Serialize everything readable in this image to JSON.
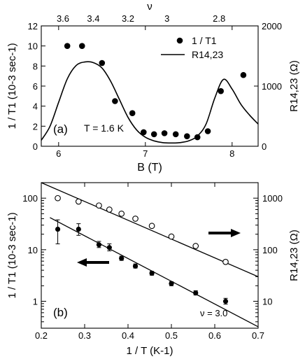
{
  "chart_data": [
    {
      "panel_label": "(a)",
      "type": "scatter",
      "x_axis": {
        "label": "B (T)",
        "range": [
          5.8,
          8.3
        ],
        "ticks": [
          6,
          7,
          8
        ],
        "tick_labels": [
          "6",
          "7",
          "8"
        ]
      },
      "top_axis": {
        "label": "ν",
        "ticks": [
          3.6,
          3.4,
          3.2,
          3,
          2.8
        ],
        "tick_labels": [
          "3.6",
          "3.4",
          "3.2",
          "3",
          "2.8"
        ],
        "tick_positions_B": [
          6.05,
          6.4,
          6.8,
          7.25,
          7.85
        ]
      },
      "y_axis": {
        "label": "1 / T1 (10-3 sec-1)",
        "range": [
          0,
          12
        ],
        "ticks": [
          0,
          2,
          4,
          6,
          8,
          10,
          12
        ],
        "tick_labels": [
          "0",
          "2",
          "4",
          "6",
          "8",
          "10",
          "12"
        ]
      },
      "y2_axis": {
        "label": "R14,23 (Ω)",
        "range": [
          0,
          2000
        ],
        "ticks": [
          0,
          1000,
          2000
        ],
        "tick_labels": [
          "0",
          "1000",
          "2000"
        ]
      },
      "legend": {
        "position": "top-right",
        "entries": [
          {
            "label": "1 / T1",
            "marker": "filled-circle"
          },
          {
            "label": "R14,23",
            "marker": "line"
          }
        ]
      },
      "annotation": "T = 1.6 K",
      "series": [
        {
          "name": "1 / T1",
          "style": "filled-circle",
          "x": [
            6.1,
            6.27,
            6.5,
            6.65,
            6.85,
            6.98,
            7.1,
            7.22,
            7.35,
            7.48,
            7.6,
            7.72,
            7.87,
            8.13
          ],
          "y": [
            10.0,
            10.0,
            8.3,
            4.5,
            3.3,
            1.4,
            1.2,
            1.3,
            1.2,
            1.0,
            0.9,
            1.5,
            5.5,
            7.1
          ]
        },
        {
          "name": "R14,23",
          "style": "line",
          "axis": "y2",
          "x": [
            5.8,
            5.9,
            6.0,
            6.1,
            6.2,
            6.3,
            6.4,
            6.5,
            6.6,
            6.7,
            6.8,
            6.9,
            7.0,
            7.1,
            7.2,
            7.3,
            7.4,
            7.5,
            7.6,
            7.7,
            7.8,
            7.9,
            8.0,
            8.1,
            8.2,
            8.3
          ],
          "y": [
            100,
            330,
            730,
            1120,
            1340,
            1400,
            1390,
            1300,
            1080,
            780,
            480,
            270,
            150,
            90,
            60,
            55,
            60,
            90,
            170,
            370,
            800,
            1110,
            950,
            700,
            520,
            370
          ]
        }
      ]
    },
    {
      "panel_label": "(b)",
      "type": "scatter",
      "x_axis": {
        "label": "1 / T (K-1)",
        "range": [
          0.2,
          0.7
        ],
        "ticks": [
          0.2,
          0.3,
          0.4,
          0.5,
          0.6,
          0.7
        ],
        "tick_labels": [
          "0.2",
          "0.3",
          "0.4",
          "0.5",
          "0.6",
          "0.7"
        ]
      },
      "y_axis": {
        "label": "1 / T1 (10-3 sec-1)",
        "scale": "log",
        "range": [
          0.3,
          200
        ],
        "ticks": [
          1,
          10,
          100
        ],
        "tick_labels": [
          "1",
          "10",
          "100"
        ]
      },
      "y2_axis": {
        "label": "R14,23 (Ω)",
        "scale": "log",
        "range": [
          3,
          2000
        ],
        "ticks": [
          10,
          100,
          1000
        ],
        "tick_labels": [
          "10",
          "100",
          "1000"
        ]
      },
      "annotation": "ν = 3.0",
      "arrows": [
        {
          "direction": "right",
          "refers_to": "R14,23"
        },
        {
          "direction": "left",
          "refers_to": "1 / T1"
        }
      ],
      "series": [
        {
          "name": "1 / T1",
          "style": "filled-circle",
          "x": [
            0.238,
            0.286,
            0.333,
            0.357,
            0.385,
            0.417,
            0.455,
            0.5,
            0.556,
            0.625
          ],
          "y": [
            25,
            25,
            12.5,
            11,
            6.8,
            4.8,
            3.5,
            2.2,
            1.45,
            1.0
          ],
          "error": [
            [
              13,
              38
            ],
            [
              19,
              32
            ],
            [
              11,
              14.5
            ],
            [
              9.5,
              13
            ],
            [
              6.2,
              7.5
            ],
            [
              4.4,
              5.3
            ],
            [
              3.2,
              3.8
            ],
            [
              2.0,
              2.4
            ],
            [
              1.32,
              1.6
            ],
            [
              0.88,
              1.14
            ]
          ]
        },
        {
          "name": "R14,23",
          "style": "open-circle",
          "axis": "y2",
          "x": [
            0.238,
            0.286,
            0.333,
            0.357,
            0.385,
            0.417,
            0.455,
            0.5,
            0.556,
            0.625
          ],
          "y": [
            1000,
            860,
            720,
            600,
            500,
            400,
            290,
            180,
            118,
            58
          ]
        },
        {
          "name": "fit 1 / T1",
          "style": "line",
          "x": [
            0.22,
            0.7
          ],
          "y": [
            42,
            0.32
          ]
        },
        {
          "name": "fit R14,23",
          "style": "line",
          "axis": "y2",
          "x": [
            0.2,
            0.7
          ],
          "y": [
            2000,
            30
          ]
        }
      ]
    }
  ]
}
